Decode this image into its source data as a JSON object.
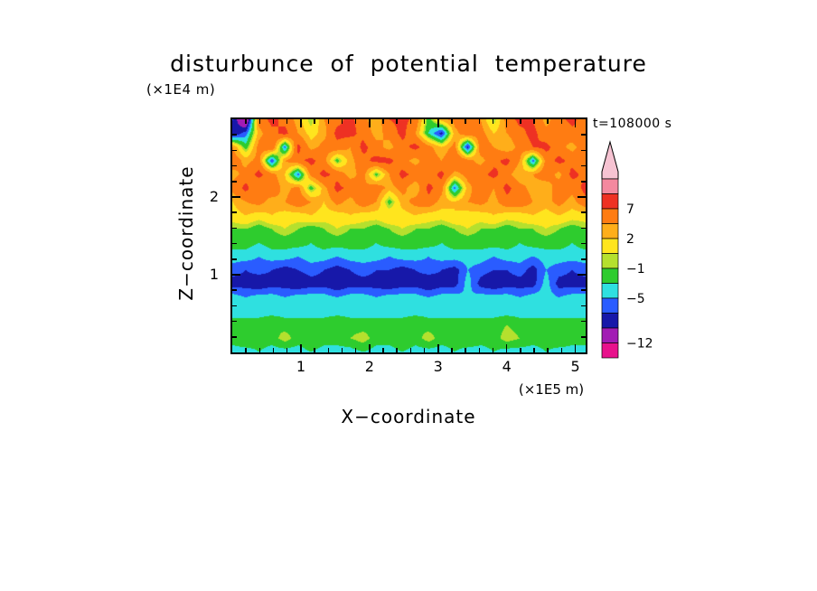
{
  "title": "disturbunce of potential temperature",
  "labels": {
    "y_unit": "(×1E4 m)",
    "x_unit": "(×1E5 m)",
    "time": "t=108000 s",
    "x_axis": "X−coordinate",
    "y_axis": "Z−coordinate"
  },
  "chart_data": {
    "type": "heatmap",
    "title": "disturbunce of potential temperature",
    "xlabel": "X-coordinate (×1E5 m)",
    "ylabel": "Z-coordinate (×1E4 m)",
    "annotation": "t=108000 s",
    "x_range": [
      0,
      5.15
    ],
    "z_range": [
      0,
      3.0
    ],
    "x_ticks": [
      1,
      2,
      3,
      4,
      5
    ],
    "z_ticks": [
      1,
      2
    ],
    "x_tick_labels": [
      "1",
      "2",
      "3",
      "4",
      "5"
    ],
    "z_tick_labels": [
      "1",
      "2"
    ],
    "minor_tick_step": 0.2,
    "grid_cols": 28,
    "grid_rows": 18,
    "levels": [
      9,
      7,
      4,
      2,
      0,
      -1,
      -3,
      -5,
      -7,
      -9,
      -12
    ],
    "colors": [
      "#f4899f",
      "#ee3123",
      "#ff7c12",
      "#ffae1a",
      "#ffe51e",
      "#b5e02e",
      "#2ecc2e",
      "#2fe0e0",
      "#2a5cff",
      "#1718a9",
      "#a21cb4",
      "#e8128c"
    ],
    "arrow_color": "#f6c3d2",
    "colorbar_labels": [
      {
        "text": "7",
        "boundary": 2
      },
      {
        "text": "2",
        "boundary": 4
      },
      {
        "text": "−1",
        "boundary": 6
      },
      {
        "text": "−5",
        "boundary": 8
      },
      {
        "text": "−12",
        "boundary": 11
      }
    ],
    "values": [
      [
        -7,
        -13,
        5,
        8,
        6,
        3,
        -1,
        4,
        6,
        8,
        5,
        2,
        7,
        8,
        6,
        -2,
        3,
        5,
        6,
        4,
        -1,
        5,
        8,
        7,
        3,
        6,
        8,
        5
      ],
      [
        -9,
        -6,
        3,
        6,
        8,
        4,
        1,
        3,
        8,
        8,
        6,
        3,
        5,
        8,
        4,
        -3,
        -8,
        3,
        6,
        5,
        2,
        4,
        6,
        8,
        5,
        4,
        6,
        7
      ],
      [
        4,
        -2,
        5,
        7,
        -6,
        8,
        3,
        5,
        6,
        4,
        8,
        5,
        3,
        6,
        8,
        5,
        2,
        5,
        -8,
        6,
        4,
        2,
        5,
        7,
        8,
        5,
        3,
        6
      ],
      [
        6,
        3,
        5,
        -7,
        4,
        6,
        8,
        5,
        -2,
        3,
        6,
        8,
        8,
        5,
        3,
        6,
        4,
        7,
        5,
        3,
        6,
        8,
        4,
        -6,
        5,
        8,
        6,
        4
      ],
      [
        3,
        5,
        8,
        5,
        2,
        -6,
        5,
        8,
        6,
        3,
        5,
        -2,
        4,
        8,
        6,
        5,
        8,
        3,
        5,
        6,
        8,
        5,
        2,
        4,
        6,
        3,
        8,
        6
      ],
      [
        5,
        8,
        4,
        6,
        3,
        5,
        -2,
        3,
        8,
        6,
        4,
        6,
        3,
        5,
        2,
        8,
        5,
        -6,
        3,
        6,
        4,
        8,
        5,
        3,
        2,
        6,
        5,
        8
      ],
      [
        2,
        4,
        5,
        3,
        4,
        6,
        4,
        2,
        5,
        3,
        6,
        4,
        -2,
        3,
        5,
        6,
        3,
        2,
        4,
        5,
        3,
        6,
        6,
        4,
        3,
        5,
        3,
        6
      ],
      [
        1,
        2,
        1,
        2,
        1,
        1,
        2,
        1,
        1,
        2,
        1,
        1,
        2,
        1,
        2,
        1,
        1,
        2,
        1,
        1,
        2,
        1,
        1,
        2,
        1,
        2,
        1,
        1
      ],
      [
        -1,
        -1,
        -2,
        -1,
        0,
        -1,
        -2,
        -1,
        0,
        -1,
        -1,
        -2,
        -1,
        0,
        -1,
        -1,
        -2,
        -1,
        0,
        -1,
        -1,
        -2,
        -1,
        -1,
        0,
        -1,
        -2,
        -1
      ],
      [
        -2,
        -2,
        -3,
        -2,
        -2,
        -2,
        -3,
        -2,
        -2,
        -2,
        -2,
        -3,
        -2,
        -2,
        -2,
        -2,
        -3,
        -2,
        -2,
        -2,
        -2,
        -2,
        -3,
        -2,
        -2,
        -2,
        -3,
        -2
      ],
      [
        -4,
        -4,
        -5,
        -4,
        -4,
        -5,
        -4,
        -4,
        -5,
        -4,
        -4,
        -4,
        -5,
        -4,
        -4,
        -5,
        -4,
        -4,
        -4,
        -4,
        -5,
        -4,
        -4,
        -5,
        -4,
        -4,
        -4,
        -4
      ],
      [
        -6,
        -7,
        -6,
        -7,
        -8,
        -7,
        -6,
        -7,
        -8,
        -7,
        -6,
        -7,
        -7,
        -8,
        -7,
        -6,
        -7,
        -8,
        -5,
        -6,
        -7,
        -7,
        -6,
        -8,
        -5,
        -6,
        -7,
        -6
      ],
      [
        -8,
        -8,
        -9,
        -8,
        -8,
        -9,
        -8,
        -8,
        -9,
        -8,
        -8,
        -8,
        -9,
        -8,
        -8,
        -9,
        -8,
        -8,
        -4,
        -8,
        -9,
        -8,
        -8,
        -8,
        -4,
        -8,
        -8,
        -8
      ],
      [
        -4,
        -5,
        -4,
        -4,
        -5,
        -4,
        -4,
        -4,
        -5,
        -4,
        -4,
        -5,
        -4,
        -4,
        -4,
        -5,
        -4,
        -4,
        -5,
        -4,
        -4,
        -4,
        -5,
        -4,
        -4,
        -5,
        -4,
        -4
      ],
      [
        -4,
        -4,
        -4,
        -4,
        -4,
        -4,
        -4,
        -4,
        -4,
        -4,
        -4,
        -4,
        -4,
        -4,
        -4,
        -4,
        -4,
        -4,
        -4,
        -4,
        -4,
        -4,
        -4,
        -4,
        -4,
        -4,
        -4,
        -4
      ],
      [
        -2,
        -2,
        -2,
        -1,
        -2,
        -2,
        -2,
        -2,
        -1,
        -2,
        -2,
        -2,
        -2,
        -2,
        -1,
        -2,
        -2,
        -2,
        -2,
        -2,
        -2,
        -1,
        -2,
        -2,
        -2,
        -2,
        -2,
        -2
      ],
      [
        -2,
        -1,
        -2,
        -2,
        0,
        -2,
        -1,
        -2,
        -2,
        -1,
        0,
        -2,
        -2,
        -1,
        -2,
        0,
        -2,
        -2,
        -1,
        -2,
        -2,
        0,
        -1,
        -2,
        -2,
        -1,
        -2,
        -2
      ],
      [
        -4,
        -4,
        -3,
        -4,
        -4,
        -4,
        -3,
        -4,
        -4,
        -4,
        -3,
        -4,
        -4,
        -3,
        -4,
        -4,
        -4,
        -3,
        -4,
        -4,
        -3,
        -4,
        -4,
        -4,
        -3,
        -4,
        -4,
        -4
      ]
    ]
  }
}
